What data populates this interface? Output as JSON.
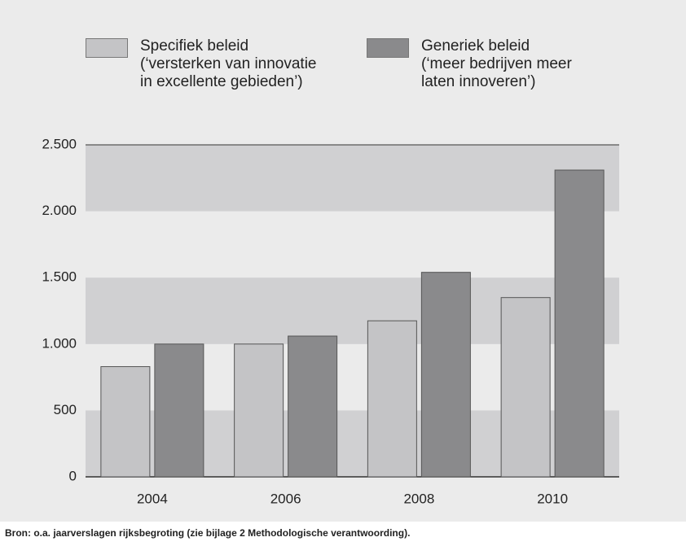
{
  "chart_data": {
    "type": "bar",
    "categories": [
      "2004",
      "2006",
      "2008",
      "2010"
    ],
    "series": [
      {
        "name": "Specifiek beleid\n(‘versterken van innovatie\nin excellente gebieden’)",
        "color": "#c4c4c6",
        "values": [
          830,
          1000,
          1175,
          1350
        ]
      },
      {
        "name": "Generiek beleid\n(‘meer bedrijven meer\nlaten innoveren’)",
        "color": "#8a8a8c",
        "values": [
          1000,
          1060,
          1540,
          2310
        ]
      }
    ],
    "ylim": [
      0,
      2500
    ],
    "yticks": [
      0,
      500,
      {
        "value": 1000,
        "label": "1.000"
      },
      {
        "value": 1500,
        "label": "1.500"
      },
      {
        "value": 2000,
        "label": "2.000"
      },
      {
        "value": 2500,
        "label": "2.500"
      }
    ],
    "source": "Bron: o.a. jaarverslagen rijksbegroting (zie bijlage 2 Methodologische verantwoording)."
  }
}
